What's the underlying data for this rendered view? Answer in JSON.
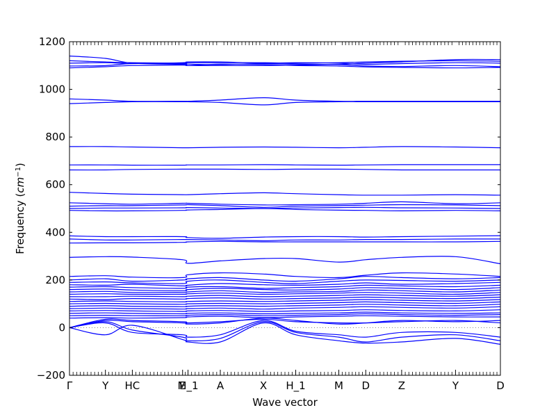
{
  "chart_data": {
    "type": "line",
    "title": "",
    "xlabel": "Wave vector",
    "ylabel": "Frequency ($cm^{-1}$)",
    "ylabel_text": "Frequency (",
    "ylabel_math": "cm",
    "ylabel_exp": "−1",
    "ylabel_close": ")",
    "ylim": [
      -200,
      1200
    ],
    "yticks": [
      -200,
      0,
      200,
      400,
      600,
      800,
      1000,
      1200
    ],
    "ytick_labels": [
      "−200",
      "0",
      "200",
      "400",
      "600",
      "800",
      "1000",
      "1200"
    ],
    "xlim": [
      0,
      12
    ],
    "high_symmetry_points": [
      {
        "label": "Γ",
        "x": 0.0
      },
      {
        "label": "Y",
        "x": 1.0
      },
      {
        "label": "HC",
        "x": 1.75
      },
      {
        "label": "E",
        "x": 3.15
      },
      {
        "label": "M_1",
        "x": 3.3
      },
      {
        "label": "A",
        "x": 4.2
      },
      {
        "label": "X",
        "x": 5.4
      },
      {
        "label": "H_1",
        "x": 6.3
      },
      {
        "label": "M",
        "x": 7.5
      },
      {
        "label": "D",
        "x": 8.25
      },
      {
        "label": "Z",
        "x": 9.25
      },
      {
        "label": "Y",
        "x": 10.75
      },
      {
        "label": "D",
        "x": 12.0
      }
    ],
    "series_color": "#0000ff",
    "zero_line_color": "#777777",
    "bands": [
      {
        "values": [
          1140,
          1130,
          1110,
          1105,
          1100,
          1100,
          1100,
          1102,
          1105,
          1110,
          1115,
          1125,
          1125
        ]
      },
      {
        "values": [
          1120,
          1115,
          1112,
          1110,
          1112,
          1112,
          1112,
          1110,
          1112,
          1115,
          1118,
          1120,
          1118
        ]
      },
      {
        "values": [
          1110,
          1112,
          1108,
          1112,
          1115,
          1115,
          1110,
          1112,
          1110,
          1105,
          1108,
          1112,
          1110
        ]
      },
      {
        "values": [
          1098,
          1100,
          1108,
          1108,
          1106,
          1104,
          1108,
          1106,
          1104,
          1098,
          1096,
          1100,
          1095
        ]
      },
      {
        "values": [
          1090,
          1095,
          1100,
          1102,
          1100,
          1106,
          1104,
          1100,
          1098,
          1094,
          1092,
          1090,
          1092
        ]
      },
      {
        "values": [
          960,
          955,
          950,
          950,
          950,
          955,
          965,
          955,
          950,
          950,
          950,
          950,
          950
        ]
      },
      {
        "values": [
          940,
          945,
          948,
          948,
          948,
          945,
          935,
          945,
          948,
          948,
          948,
          948,
          948
        ]
      },
      {
        "values": [
          760,
          760,
          758,
          755,
          755,
          757,
          758,
          757,
          755,
          757,
          760,
          758,
          755
        ]
      },
      {
        "values": [
          683,
          683,
          682,
          682,
          683,
          683,
          684,
          683,
          682,
          683,
          684,
          684,
          684
        ]
      },
      {
        "values": [
          662,
          662,
          664,
          665,
          665,
          665,
          664,
          665,
          665,
          664,
          662,
          662,
          662
        ]
      },
      {
        "values": [
          568,
          563,
          560,
          558,
          558,
          562,
          566,
          562,
          558,
          556,
          556,
          558,
          556
        ]
      },
      {
        "values": [
          524,
          520,
          518,
          522,
          522,
          518,
          515,
          516,
          518,
          522,
          528,
          520,
          524
        ]
      },
      {
        "values": [
          510,
          512,
          512,
          515,
          516,
          512,
          505,
          510,
          512,
          514,
          516,
          515,
          512
        ]
      },
      {
        "values": [
          500,
          502,
          502,
          503,
          504,
          502,
          500,
          502,
          504,
          505,
          503,
          502,
          500
        ]
      },
      {
        "values": [
          492,
          490,
          490,
          492,
          494,
          496,
          500,
          496,
          493,
          492,
          490,
          492,
          490
        ]
      },
      {
        "values": [
          385,
          382,
          382,
          382,
          378,
          375,
          380,
          382,
          382,
          380,
          382,
          384,
          386
        ]
      },
      {
        "values": [
          372,
          368,
          368,
          370,
          370,
          368,
          365,
          368,
          368,
          370,
          370,
          372,
          372
        ]
      },
      {
        "values": [
          355,
          356,
          356,
          358,
          360,
          362,
          360,
          360,
          360,
          360,
          360,
          360,
          362
        ]
      },
      {
        "values": [
          295,
          298,
          296,
          285,
          270,
          280,
          290,
          290,
          275,
          285,
          295,
          298,
          268
        ]
      },
      {
        "values": [
          215,
          218,
          212,
          210,
          222,
          230,
          225,
          215,
          210,
          220,
          230,
          225,
          215
        ]
      },
      {
        "values": [
          200,
          205,
          195,
          200,
          205,
          210,
          200,
          195,
          205,
          215,
          210,
          205,
          210
        ]
      },
      {
        "values": [
          190,
          192,
          188,
          185,
          195,
          200,
          190,
          185,
          195,
          200,
          198,
          195,
          200
        ]
      },
      {
        "values": [
          180,
          178,
          182,
          175,
          178,
          185,
          180,
          178,
          182,
          188,
          182,
          185,
          190
        ]
      },
      {
        "values": [
          170,
          172,
          168,
          165,
          170,
          172,
          165,
          168,
          172,
          178,
          175,
          172,
          178
        ]
      },
      {
        "values": [
          160,
          162,
          158,
          155,
          160,
          165,
          160,
          158,
          162,
          168,
          165,
          160,
          168
        ]
      },
      {
        "values": [
          150,
          152,
          148,
          148,
          150,
          155,
          148,
          150,
          152,
          158,
          155,
          150,
          158
        ]
      },
      {
        "values": [
          140,
          142,
          140,
          140,
          142,
          145,
          140,
          142,
          145,
          148,
          145,
          140,
          148
        ]
      },
      {
        "values": [
          130,
          130,
          132,
          130,
          132,
          135,
          130,
          132,
          135,
          138,
          135,
          132,
          138
        ]
      },
      {
        "values": [
          120,
          118,
          122,
          120,
          122,
          125,
          120,
          122,
          125,
          128,
          125,
          122,
          128
        ]
      },
      {
        "values": [
          110,
          112,
          110,
          108,
          110,
          112,
          110,
          112,
          115,
          118,
          115,
          112,
          118
        ]
      },
      {
        "values": [
          100,
          102,
          100,
          98,
          100,
          102,
          100,
          102,
          105,
          108,
          105,
          102,
          108
        ]
      },
      {
        "values": [
          90,
          92,
          90,
          88,
          90,
          92,
          90,
          92,
          95,
          98,
          95,
          92,
          98
        ]
      },
      {
        "values": [
          80,
          82,
          80,
          78,
          80,
          82,
          78,
          82,
          85,
          88,
          85,
          82,
          88
        ]
      },
      {
        "values": [
          70,
          72,
          70,
          68,
          70,
          72,
          68,
          70,
          72,
          75,
          72,
          70,
          75
        ]
      },
      {
        "values": [
          60,
          62,
          60,
          58,
          60,
          62,
          58,
          60,
          62,
          65,
          62,
          60,
          62
        ]
      },
      {
        "values": [
          50,
          52,
          50,
          50,
          52,
          55,
          50,
          52,
          55,
          58,
          55,
          52,
          55
        ]
      },
      {
        "values": [
          40,
          42,
          40,
          42,
          45,
          48,
          42,
          45,
          48,
          50,
          48,
          45,
          45
        ]
      },
      {
        "values": [
          0,
          30,
          25,
          20,
          15,
          20,
          40,
          30,
          15,
          20,
          30,
          25,
          30
        ]
      },
      {
        "values": [
          0,
          35,
          30,
          25,
          20,
          25,
          35,
          25,
          20,
          20,
          25,
          30,
          20
        ]
      },
      {
        "values": [
          0,
          20,
          -20,
          -30,
          -40,
          -30,
          30,
          -15,
          -30,
          -40,
          -20,
          -20,
          -40
        ]
      },
      {
        "values": [
          0,
          25,
          -10,
          -40,
          -55,
          -45,
          25,
          -20,
          -40,
          -60,
          -40,
          -30,
          -55
        ]
      },
      {
        "values": [
          0,
          -30,
          10,
          -50,
          -60,
          -60,
          20,
          -30,
          -55,
          -65,
          -60,
          -45,
          -70
        ]
      }
    ]
  }
}
